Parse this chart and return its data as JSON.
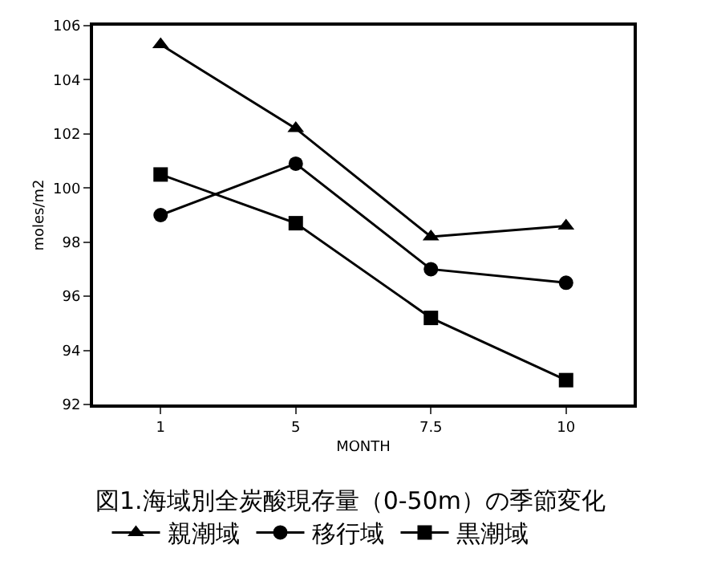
{
  "chart_data": {
    "type": "line",
    "title": "図1.海域別全炭酸現存量（0-50m）の季節変化",
    "xlabel": "MONTH",
    "ylabel": "moles/m2",
    "categories": [
      "1",
      "5",
      "7.5",
      "10"
    ],
    "series": [
      {
        "name": "親潮域",
        "color": "#000000",
        "marker": "triangle",
        "values": [
          105.3,
          102.2,
          98.2,
          98.6
        ]
      },
      {
        "name": "移行域",
        "color": "#000000",
        "marker": "circle",
        "values": [
          99.0,
          100.9,
          97.0,
          96.5
        ]
      },
      {
        "name": "黒潮域",
        "color": "#000000",
        "marker": "square",
        "values": [
          100.5,
          98.7,
          95.2,
          92.9
        ]
      }
    ],
    "ylim": [
      92,
      106
    ],
    "yticks": [
      92,
      94,
      96,
      98,
      100,
      102,
      104,
      106
    ],
    "legend": "bottom",
    "line_style": "solid"
  }
}
